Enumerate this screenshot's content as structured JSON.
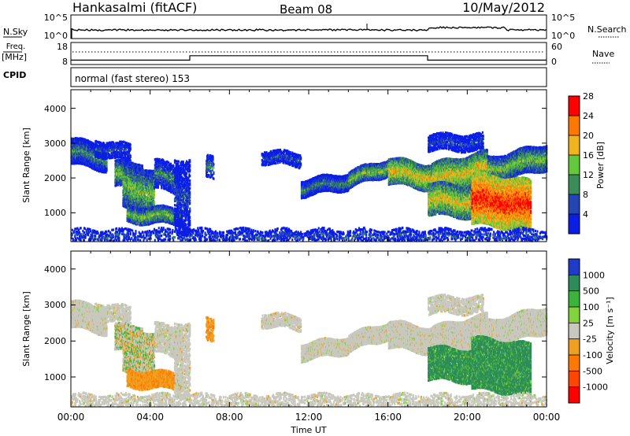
{
  "header": {
    "station": "Hankasalmi (fitACF)",
    "beam": "Beam 08",
    "date": "10/May/2012"
  },
  "noise_panel": {
    "left_label": "N.Sky",
    "left_top_tick": "10^5",
    "left_bottom_tick": "10^0",
    "right_top_tick": "10^5",
    "right_bottom_tick": "10^0",
    "right_label": "N.Search"
  },
  "freq_panel": {
    "left_label_line1": "Freq.",
    "left_label_line2": "[MHz]",
    "left_top_tick": "18",
    "left_bottom_tick": "8",
    "right_top_tick": "60",
    "right_bottom_tick": "0",
    "right_label": "Nave"
  },
  "cpid_panel": {
    "label": "CPID",
    "program": "normal (fast stereo) 153"
  },
  "power_panel": {
    "ylabel": "Slant Range [km]",
    "yticks": [
      "1000",
      "2000",
      "3000",
      "4000"
    ],
    "colorbar_label": "Power [dB]",
    "colorbar_ticks": [
      "4",
      "8",
      "12",
      "16",
      "20",
      "24",
      "28"
    ],
    "colorbar_colors": [
      "#0a1ee6",
      "#2346b4",
      "#3c8c5a",
      "#64c83c",
      "#f0b41e",
      "#ff7800",
      "#ff0000"
    ]
  },
  "velocity_panel": {
    "ylabel": "Slant Range [km]",
    "yticks": [
      "1000",
      "2000",
      "3000",
      "4000"
    ],
    "colorbar_label": "Velocity [m s⁻¹]",
    "colorbar_ticks": [
      "1000",
      "500",
      "100",
      "25",
      "-25",
      "-100",
      "-500",
      "-1000"
    ],
    "colorbar_colors": [
      "#1e3cc8",
      "#2d8c5a",
      "#3cb43c",
      "#82d23c",
      "#c8c8be",
      "#f0a01e",
      "#ff7800",
      "#ff4600",
      "#ff0000"
    ]
  },
  "x_axis": {
    "ticks": [
      "00:00",
      "04:00",
      "08:00",
      "12:00",
      "16:00",
      "20:00",
      "00:00"
    ],
    "label": "Time UT"
  },
  "chart_data": {
    "type": "heatmap",
    "x_range_hours": [
      0,
      24
    ],
    "y_range_km": [
      180,
      4500
    ],
    "frequency_mhz": [
      {
        "start_hour": 0,
        "end_hour": 6,
        "value": 10
      },
      {
        "start_hour": 6,
        "end_hour": 18,
        "value": 12
      },
      {
        "start_hour": 18,
        "end_hour": 24,
        "value": 10
      }
    ]
  }
}
